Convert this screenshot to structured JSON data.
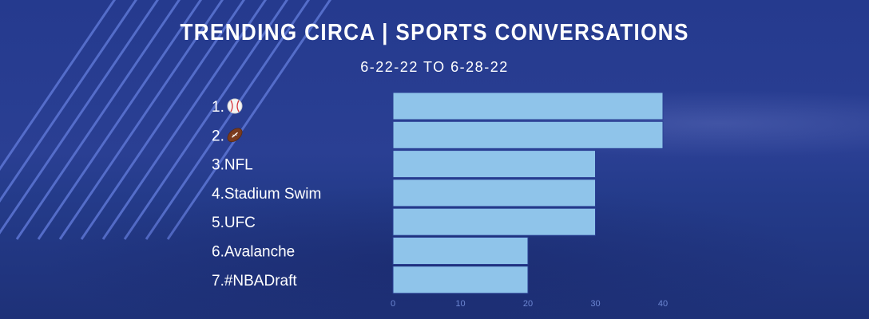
{
  "title": "TRENDING CIRCA | SPORTS CONVERSATIONS",
  "subtitle": "6-22-22  TO  6-28-22",
  "chart_data": {
    "type": "bar",
    "orientation": "horizontal",
    "title": "TRENDING CIRCA | SPORTS CONVERSATIONS",
    "subtitle": "6-22-22  TO  6-28-22",
    "categories": [
      "1.⚾",
      "2.🏈",
      "3.NFL",
      "4.Stadium Swim",
      "5.UFC",
      "6.Avalanche",
      "7.#NBADraft"
    ],
    "category_icons": [
      "baseball-icon",
      "football-icon",
      null,
      null,
      null,
      null,
      null
    ],
    "values": [
      40,
      40,
      30,
      30,
      30,
      20,
      20
    ],
    "xlim": [
      0,
      40
    ],
    "xticks": [
      0,
      10,
      20,
      30,
      40
    ],
    "xlabel": "",
    "ylabel": "",
    "grid": false,
    "legend": "none",
    "bar_color": "#8fc4ea",
    "bar_edge_color": "#2a3f93",
    "tick_color": "#6c86d2",
    "text_color": "#ffffff",
    "background_color": "#263b8c"
  }
}
